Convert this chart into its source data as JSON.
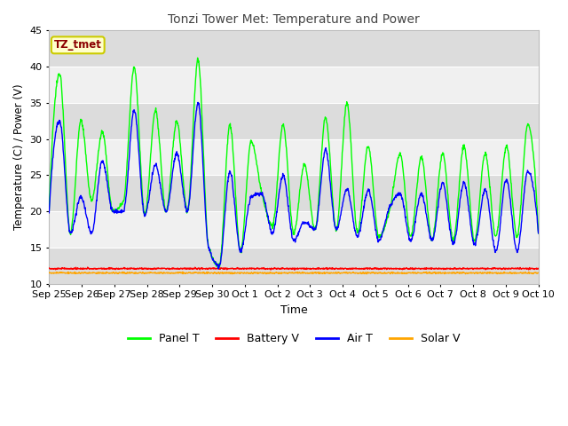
{
  "title": "Tonzi Tower Met: Temperature and Power",
  "xlabel": "Time",
  "ylabel": "Temperature (C) / Power (V)",
  "ylim": [
    10,
    45
  ],
  "yticks": [
    10,
    15,
    20,
    25,
    30,
    35,
    40,
    45
  ],
  "annotation_text": "TZ_tmet",
  "annotation_color": "#8B0000",
  "annotation_bg": "#FFFFCC",
  "annotation_border": "#CCCC00",
  "fig_bg": "#FFFFFF",
  "plot_bg_light": "#F0F0F0",
  "plot_bg_dark": "#DCDCDC",
  "grid_color": "#FFFFFF",
  "panel_t_color": "#00FF00",
  "battery_v_color": "#FF0000",
  "air_t_color": "#0000FF",
  "solar_v_color": "#FFA500",
  "x_tick_labels": [
    "Sep 25",
    "Sep 26",
    "Sep 27",
    "Sep 28",
    "Sep 29",
    "Sep 30",
    "Oct 1",
    "Oct 2",
    "Oct 3",
    "Oct 4",
    "Oct 5",
    "Oct 6",
    "Oct 7",
    "Oct 8",
    "Oct 9",
    "Oct 10"
  ],
  "x_tick_positions": [
    0,
    1,
    2,
    3,
    4,
    5,
    6,
    7,
    8,
    9,
    10,
    11,
    12,
    13,
    14,
    15
  ],
  "panel_t_peaks": [
    19.8,
    39.0,
    17.0,
    32.5,
    21.5,
    31.0,
    20.0,
    21.5,
    40.0,
    19.5,
    34.0,
    20.0,
    32.5,
    20.0,
    41.0,
    15.0,
    12.5,
    32.0,
    14.5,
    29.7,
    22.5,
    18.0,
    32.0,
    17.0,
    26.5,
    17.5,
    33.0,
    17.5,
    35.0,
    17.0,
    29.0,
    16.5,
    20.0,
    28.0,
    16.5,
    27.5,
    16.0,
    28.0,
    16.0,
    29.0,
    16.0,
    28.0,
    16.5,
    29.0,
    16.5,
    32.0,
    17.0
  ],
  "air_t_peaks": [
    19.8,
    32.5,
    17.0,
    22.0,
    17.0,
    27.0,
    20.0,
    20.0,
    34.0,
    19.5,
    26.5,
    20.0,
    28.0,
    20.0,
    35.0,
    15.0,
    12.5,
    25.5,
    14.5,
    22.0,
    22.5,
    17.0,
    25.0,
    16.0,
    18.5,
    17.5,
    28.5,
    17.5,
    23.0,
    16.5,
    23.0,
    16.0,
    20.5,
    22.5,
    16.0,
    22.5,
    16.0,
    24.0,
    15.5,
    24.0,
    15.5,
    23.0,
    14.5,
    24.5,
    14.5,
    25.5,
    17.0
  ],
  "battery_v": 12.1,
  "solar_v": 11.5
}
